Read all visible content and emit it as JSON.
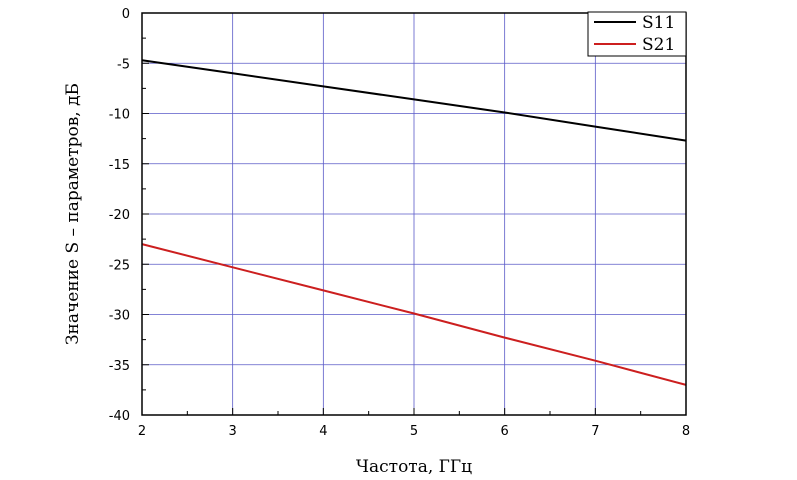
{
  "chart_data": {
    "type": "line",
    "title": "",
    "xlabel": "Частота, ГГц",
    "ylabel": "Значение S – параметров, дБ",
    "xlim": [
      2,
      8
    ],
    "ylim": [
      -40,
      0
    ],
    "xticks": [
      2,
      3,
      4,
      5,
      6,
      7,
      8
    ],
    "yticks": [
      0,
      -5,
      -10,
      -15,
      -20,
      -25,
      -30,
      -35,
      -40
    ],
    "grid": true,
    "legend_position": "top-right",
    "series": [
      {
        "name": "S11",
        "color": "#000000",
        "x": [
          2,
          3,
          4,
          5,
          6,
          7,
          8
        ],
        "y": [
          -4.7,
          -6.0,
          -7.3,
          -8.6,
          -9.9,
          -11.3,
          -12.7
        ]
      },
      {
        "name": "S21",
        "color": "#cc1f1f",
        "x": [
          2,
          3,
          4,
          5,
          6,
          7,
          8
        ],
        "y": [
          -23.0,
          -25.3,
          -27.6,
          -29.9,
          -32.3,
          -34.6,
          -37.0
        ]
      }
    ]
  }
}
